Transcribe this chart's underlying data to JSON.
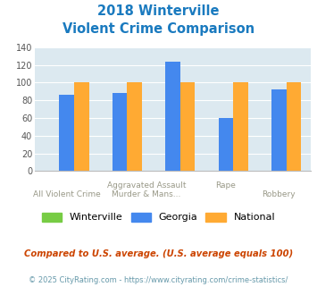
{
  "title_line1": "2018 Winterville",
  "title_line2": "Violent Crime Comparison",
  "series": {
    "Winterville": [
      0,
      0,
      0,
      0,
      0
    ],
    "Georgia": [
      86,
      88,
      124,
      60,
      92
    ],
    "National": [
      100,
      100,
      100,
      100,
      100
    ]
  },
  "colors": {
    "Winterville": "#77cc44",
    "Georgia": "#4488ee",
    "National": "#ffaa33"
  },
  "ylim": [
    0,
    140
  ],
  "yticks": [
    0,
    20,
    40,
    60,
    80,
    100,
    120,
    140
  ],
  "footnote1": "Compared to U.S. average. (U.S. average equals 100)",
  "footnote2": "© 2025 CityRating.com - https://www.cityrating.com/crime-statistics/",
  "bg_color": "#dce9f0",
  "title_color": "#1a7abf",
  "footnote1_color": "#cc4400",
  "footnote2_color": "#6699aa",
  "label_color": "#999988",
  "bar_width": 0.28,
  "group_positions": [
    0,
    1,
    2,
    3,
    4
  ],
  "row1_labels": [
    {
      "text": "Aggravated Assault",
      "x": 1.5
    },
    {
      "text": "Rape",
      "x": 3.0
    }
  ],
  "row2_labels": [
    {
      "text": "All Violent Crime",
      "x": 0.0
    },
    {
      "text": "Murder & Mans...",
      "x": 1.5
    },
    {
      "text": "Robbery",
      "x": 4.0
    }
  ]
}
